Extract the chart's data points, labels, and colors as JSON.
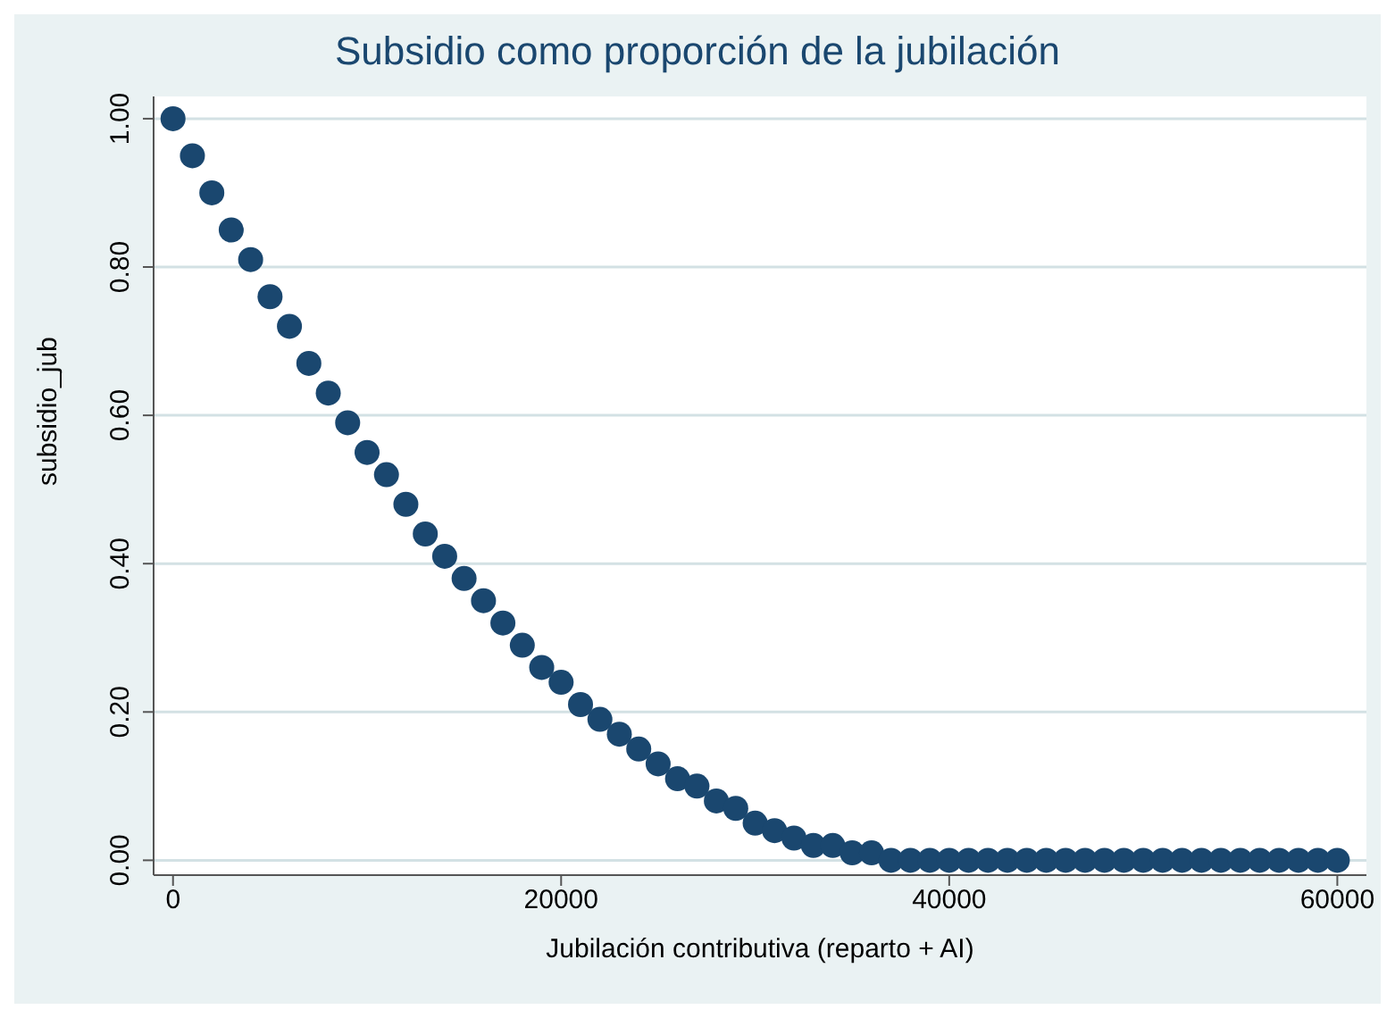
{
  "chart_data": {
    "type": "scatter",
    "title": "Subsidio como proporción de la jubilación",
    "xlabel": "Jubilación contributiva (reparto + AI)",
    "ylabel": "subsidio_jub",
    "x": [
      0,
      1000,
      2000,
      3000,
      4000,
      5000,
      6000,
      7000,
      8000,
      9000,
      10000,
      11000,
      12000,
      13000,
      14000,
      15000,
      16000,
      17000,
      18000,
      19000,
      20000,
      21000,
      22000,
      23000,
      24000,
      25000,
      26000,
      27000,
      28000,
      29000,
      30000,
      31000,
      32000,
      33000,
      34000,
      35000,
      36000,
      37000,
      38000,
      39000,
      40000,
      41000,
      42000,
      43000,
      44000,
      45000,
      46000,
      47000,
      48000,
      49000,
      50000,
      51000,
      52000,
      53000,
      54000,
      55000,
      56000,
      57000,
      58000,
      59000,
      60000
    ],
    "series": [
      {
        "color": "#1a476f",
        "values": [
          1.0,
          0.95,
          0.9,
          0.85,
          0.81,
          0.76,
          0.72,
          0.67,
          0.63,
          0.59,
          0.55,
          0.52,
          0.48,
          0.44,
          0.41,
          0.38,
          0.35,
          0.32,
          0.29,
          0.26,
          0.24,
          0.21,
          0.19,
          0.17,
          0.15,
          0.13,
          0.11,
          0.1,
          0.08,
          0.07,
          0.05,
          0.04,
          0.03,
          0.02,
          0.02,
          0.01,
          0.01,
          0.0,
          0.0,
          0.0,
          0.0,
          0.0,
          0.0,
          0.0,
          0.0,
          0.0,
          0.0,
          0.0,
          0.0,
          0.0,
          0.0,
          0.0,
          0.0,
          0.0,
          0.0,
          0.0,
          0.0,
          0.0,
          0.0,
          0.0,
          0.0
        ]
      }
    ],
    "xlim": [
      -1000,
      61500
    ],
    "xticks": [
      0,
      20000,
      40000,
      60000
    ],
    "ylim": [
      -0.02,
      1.03
    ],
    "yticks": [
      {
        "value": 0,
        "label": "0.00"
      },
      {
        "value": 0.2,
        "label": "0.20"
      },
      {
        "value": 0.4,
        "label": "0.40"
      },
      {
        "value": 0.6,
        "label": "0.60"
      },
      {
        "value": 0.8,
        "label": "0.80"
      },
      {
        "value": 1,
        "label": "1.00"
      }
    ],
    "grid": "y",
    "marker": "circle",
    "legend": false
  }
}
